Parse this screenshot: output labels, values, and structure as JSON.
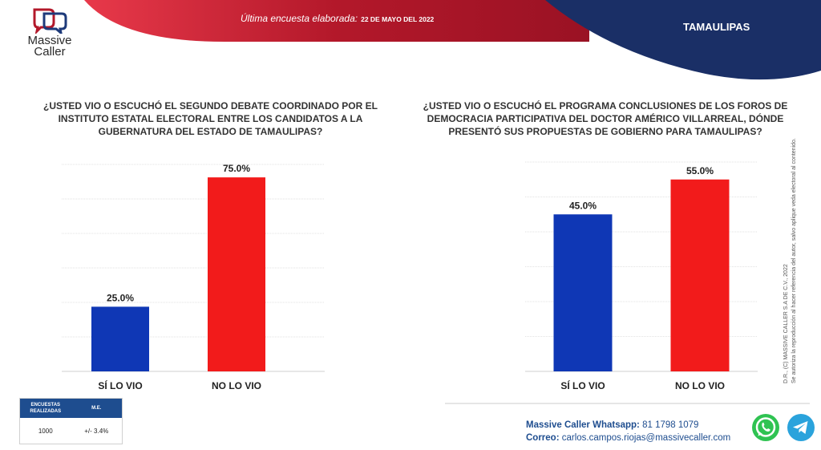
{
  "header": {
    "logo_line1": "Massive",
    "logo_line2": "Caller",
    "survey_label": "Última encuesta elaborada:",
    "survey_date": "22 DE MAYO DEL 2022",
    "region": "TAMAULIPAS"
  },
  "colors": {
    "header_red": "#b3182a",
    "header_navy": "#1a2f66",
    "bar_blue": "#0f37b5",
    "bar_red": "#f21b1b",
    "brand_blue": "#1e4d8f"
  },
  "chart_data": [
    {
      "type": "bar",
      "title": "¿USTED VIO O ESCUCHÓ EL SEGUNDO DEBATE COORDINADO POR EL INSTITUTO ESTATAL ELECTORAL ENTRE LOS CANDIDATOS A LA GUBERNATURA DEL ESTADO DE TAMAULIPAS?",
      "categories": [
        "SÍ LO VIO",
        "NO LO VIO"
      ],
      "values": [
        25.0,
        75.0
      ],
      "value_labels": [
        "25.0%",
        "75.0%"
      ],
      "ylim": [
        0,
        80
      ],
      "grid": true
    },
    {
      "type": "bar",
      "title": "¿USTED VIO O ESCUCHÓ EL PROGRAMA CONCLUSIONES DE LOS FOROS DE DEMOCRACIA PARTICIPATIVA DEL DOCTOR AMÉRICO VILLARREAL, DÓNDE PRESENTÓ SUS PROPUESTAS DE GOBIERNO PARA TAMAULIPAS?",
      "categories": [
        "SÍ LO VIO",
        "NO LO VIO"
      ],
      "values": [
        45.0,
        55.0
      ],
      "value_labels": [
        "45.0%",
        "55.0%"
      ],
      "ylim": [
        0,
        60
      ],
      "grid": true
    }
  ],
  "copyright": {
    "line1": "D.R., (C) MASSIVE CALLER S.A DE C.V., 2022",
    "line2": "Se autoriza la reproducción al hacer referencia del autor, salvo aplique veda electoral al contenido."
  },
  "survey_info": {
    "col1_header": "ENCUESTAS REALIZADAS",
    "col2_header": "M.E.",
    "col1_value": "1000",
    "col2_value": "+/- 3.4%"
  },
  "contact": {
    "whatsapp_label": "Massive Caller Whatsapp:",
    "whatsapp_value": "81 1798 1079",
    "email_label": "Correo:",
    "email_value": "carlos.campos.riojas@massivecaller.com"
  },
  "icons": [
    "whatsapp-icon",
    "telegram-icon"
  ]
}
